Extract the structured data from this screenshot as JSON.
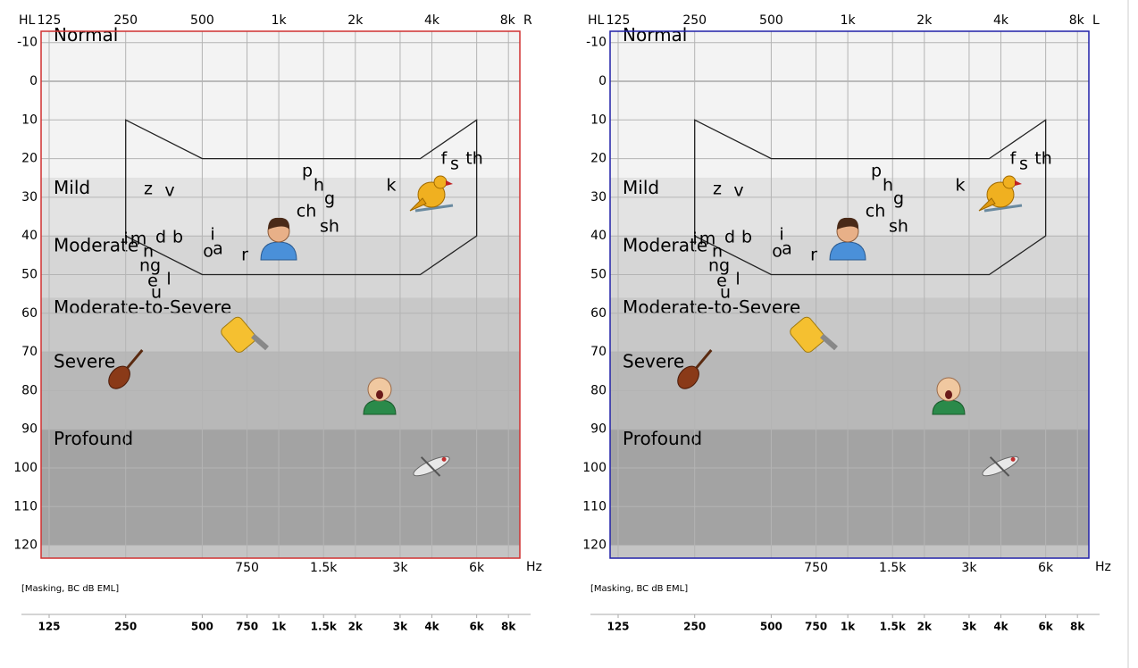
{
  "hl_label": "HL",
  "hz_label": "Hz",
  "panels": [
    {
      "ear": "R",
      "border_color": "#d03030",
      "note": "[Masking, BC dB EML]"
    },
    {
      "ear": "L",
      "border_color": "#2020a8",
      "note": "[Masking, BC dB EML]"
    }
  ],
  "octave_ticks": [
    125,
    250,
    500,
    {
      "value": 1000,
      "label": "1k"
    },
    {
      "value": 2000,
      "label": "2k"
    },
    {
      "value": 4000,
      "label": "4k"
    },
    {
      "value": 8000,
      "label": "8k"
    }
  ],
  "interoctave_ticks": [
    750,
    {
      "value": 1500,
      "label": "1.5k"
    },
    {
      "value": 3000,
      "label": "3k"
    },
    {
      "value": 6000,
      "label": "6k"
    }
  ],
  "db_ticks": [
    -10,
    0,
    10,
    20,
    30,
    40,
    50,
    60,
    70,
    80,
    90,
    100,
    110,
    120
  ],
  "degrees": [
    {
      "label": "Normal",
      "range": [
        -10,
        25
      ],
      "color": "#f3f3f3"
    },
    {
      "label": "Mild",
      "range": [
        25,
        40
      ],
      "color": "#e3e3e3"
    },
    {
      "label": "Moderate",
      "range": [
        40,
        56
      ],
      "color": "#d6d6d6"
    },
    {
      "label": "Moderate-to-Severe",
      "range": [
        56,
        70
      ],
      "color": "#c8c8c8"
    },
    {
      "label": "Severe",
      "range": [
        70,
        90
      ],
      "color": "#b8b8b8"
    },
    {
      "label": "Profound",
      "range": [
        90,
        120
      ],
      "color": "#a3a3a3"
    }
  ],
  "speech_banana": {
    "freq": [
      250,
      500,
      3600,
      6000,
      6000,
      3600,
      500,
      250
    ],
    "db": [
      10,
      20,
      20,
      10,
      40,
      50,
      50,
      40
    ]
  },
  "phonemes": [
    "z",
    "v",
    "p",
    "h",
    "g",
    "k",
    "f",
    "s",
    "th",
    "ch",
    "sh",
    "i",
    "m",
    "d",
    "b",
    "n",
    "ng",
    "e",
    "l",
    "u",
    "i",
    "o",
    "a",
    "r"
  ]
}
